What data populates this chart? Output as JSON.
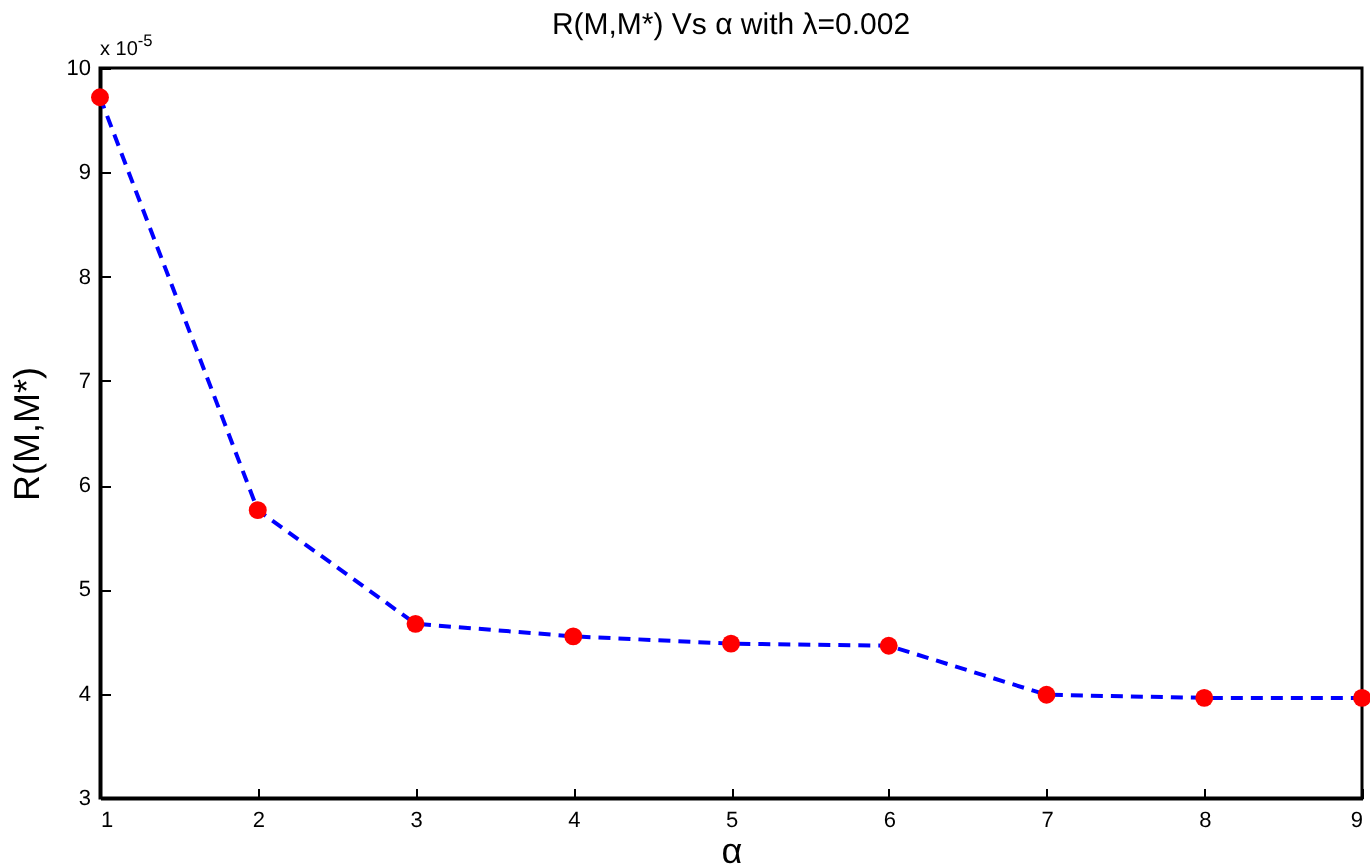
{
  "chart_data": {
    "type": "line",
    "title": "R(M,M*) Vs α with λ=0.002",
    "xlabel": "α",
    "ylabel": "R(M,M*)",
    "annotations": [
      "x 10$^{-5}$"
    ],
    "x": [
      1,
      2,
      3,
      4,
      5,
      6,
      7,
      8,
      9
    ],
    "series": [
      {
        "color": "#0000ff",
        "line_style": "dashed",
        "marker": "none",
        "values": [
          9.72,
          5.76,
          4.67,
          4.55,
          4.48,
          4.46,
          3.99,
          3.96,
          3.96
        ]
      },
      {
        "type": "scatter",
        "color": "#ff0000",
        "marker": "circle",
        "values": [
          9.72,
          5.76,
          4.67,
          4.55,
          4.48,
          4.46,
          3.99,
          3.96,
          3.96
        ]
      }
    ],
    "xlim": [
      1,
      9
    ],
    "xticks": [
      1,
      2,
      3,
      4,
      5,
      6,
      7,
      8,
      9
    ],
    "ylim": [
      3,
      10
    ],
    "yticks": [
      3,
      4,
      5,
      6,
      7,
      8,
      9,
      10
    ],
    "grid": false
  }
}
